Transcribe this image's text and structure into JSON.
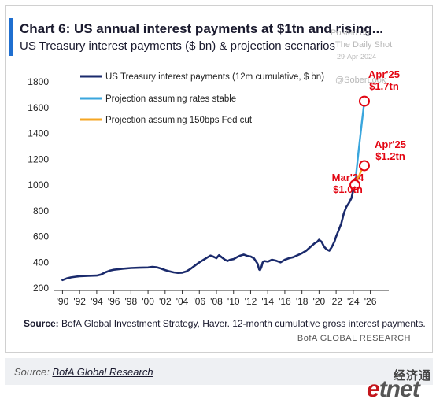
{
  "title": "Chart 6: US annual interest payments at $1tn and rising...",
  "subtitle": "US Treasury interest payments ($ bn) & projection scenarios",
  "watermark": {
    "line1": "Posted on",
    "line2": "The Daily Shot",
    "line3": "29-Apr-2024",
    "line4": "@SoberLook"
  },
  "source_note": {
    "label": "Source:",
    "text": " BofA Global Investment Strategy, Haver. 12-month cumulative gross interest payments."
  },
  "brand": "BofA GLOBAL RESEARCH",
  "caption": {
    "prefix": "Source: ",
    "link": "BofA Global Research"
  },
  "logo": {
    "cn": "经济通",
    "en_e": "e",
    "en_rest": "tnet"
  },
  "colors": {
    "actual": "#1a2a6c",
    "stable": "#3aa6dd",
    "cut": "#f5a623",
    "annotation": "#e30613"
  },
  "chart_data": {
    "type": "line",
    "title": "Chart 6: US annual interest payments at $1tn and rising...",
    "subtitle": "US Treasury interest payments ($ bn) & projection scenarios",
    "xlabel": "",
    "ylabel": "",
    "xlim": [
      1989.5,
      2026.5
    ],
    "ylim": [
      200,
      1800
    ],
    "yticks": [
      200,
      400,
      600,
      800,
      1000,
      1200,
      1400,
      1600,
      1800
    ],
    "xticks": [
      "'90",
      "'92",
      "'94",
      "'96",
      "'98",
      "'00",
      "'02",
      "'04",
      "'06",
      "'08",
      "'10",
      "'12",
      "'14",
      "'16",
      "'18",
      "'20",
      "'22",
      "'24",
      "'26"
    ],
    "xtick_years": [
      1990,
      1992,
      1994,
      1996,
      1998,
      2000,
      2002,
      2004,
      2006,
      2008,
      2010,
      2012,
      2014,
      2016,
      2018,
      2020,
      2022,
      2024,
      2026
    ],
    "legend_position": "top-left",
    "series": [
      {
        "name": "US Treasury interest payments (12m cumulative, $ bn)",
        "x": [
          1990.0,
          1990.5,
          1991.0,
          1991.5,
          1992.0,
          1993.0,
          1994.0,
          1994.5,
          1995.0,
          1995.5,
          1996.0,
          1997.0,
          1998.0,
          1999.0,
          2000.0,
          2000.5,
          2001.0,
          2001.5,
          2002.0,
          2002.5,
          2003.0,
          2003.5,
          2004.0,
          2004.5,
          2005.0,
          2005.5,
          2006.0,
          2006.5,
          2007.0,
          2007.3,
          2007.6,
          2008.0,
          2008.3,
          2008.6,
          2009.0,
          2009.3,
          2009.6,
          2010.0,
          2010.4,
          2010.8,
          2011.2,
          2011.6,
          2012.0,
          2012.4,
          2012.8,
          2013.0,
          2013.1,
          2013.25,
          2013.4,
          2013.6,
          2014.0,
          2014.5,
          2015.0,
          2015.5,
          2016.0,
          2016.5,
          2017.0,
          2017.5,
          2018.0,
          2018.5,
          2019.0,
          2019.5,
          2019.8,
          2020.0,
          2020.3,
          2020.6,
          2020.9,
          2021.2,
          2021.5,
          2021.8,
          2022.0,
          2022.3,
          2022.6,
          2022.9,
          2023.2,
          2023.5,
          2023.8,
          2024.0,
          2024.2
        ],
        "values": [
          262,
          275,
          283,
          288,
          292,
          295,
          297,
          305,
          322,
          335,
          342,
          350,
          356,
          358,
          360,
          365,
          362,
          352,
          340,
          330,
          322,
          318,
          320,
          330,
          350,
          375,
          400,
          420,
          440,
          452,
          445,
          432,
          455,
          440,
          420,
          410,
          420,
          425,
          440,
          452,
          460,
          450,
          445,
          430,
          390,
          345,
          340,
          360,
          398,
          410,
          405,
          420,
          412,
          400,
          420,
          432,
          440,
          455,
          470,
          490,
          520,
          548,
          560,
          575,
          560,
          520,
          500,
          490,
          520,
          560,
          600,
          650,
          700,
          780,
          830,
          860,
          900,
          960,
          1000
        ]
      },
      {
        "name": "Projection assuming rates stable",
        "x": [
          2024.2,
          2024.6,
          2025.0,
          2025.3
        ],
        "values": [
          1000,
          1250,
          1480,
          1650
        ]
      },
      {
        "name": "Projection assuming 150bps Fed cut",
        "x": [
          2024.2,
          2024.6,
          2025.0,
          2025.3
        ],
        "values": [
          1000,
          1060,
          1120,
          1150
        ]
      }
    ],
    "annotations": [
      {
        "line1": "Mar'24",
        "line2": "$1.0tn",
        "x": 2024.2,
        "y": 1000
      },
      {
        "line1": "Apr'25",
        "line2": "$1.7tn",
        "x": 2025.3,
        "y": 1650
      },
      {
        "line1": "Apr'25",
        "line2": "$1.2tn",
        "x": 2025.3,
        "y": 1150
      }
    ]
  }
}
